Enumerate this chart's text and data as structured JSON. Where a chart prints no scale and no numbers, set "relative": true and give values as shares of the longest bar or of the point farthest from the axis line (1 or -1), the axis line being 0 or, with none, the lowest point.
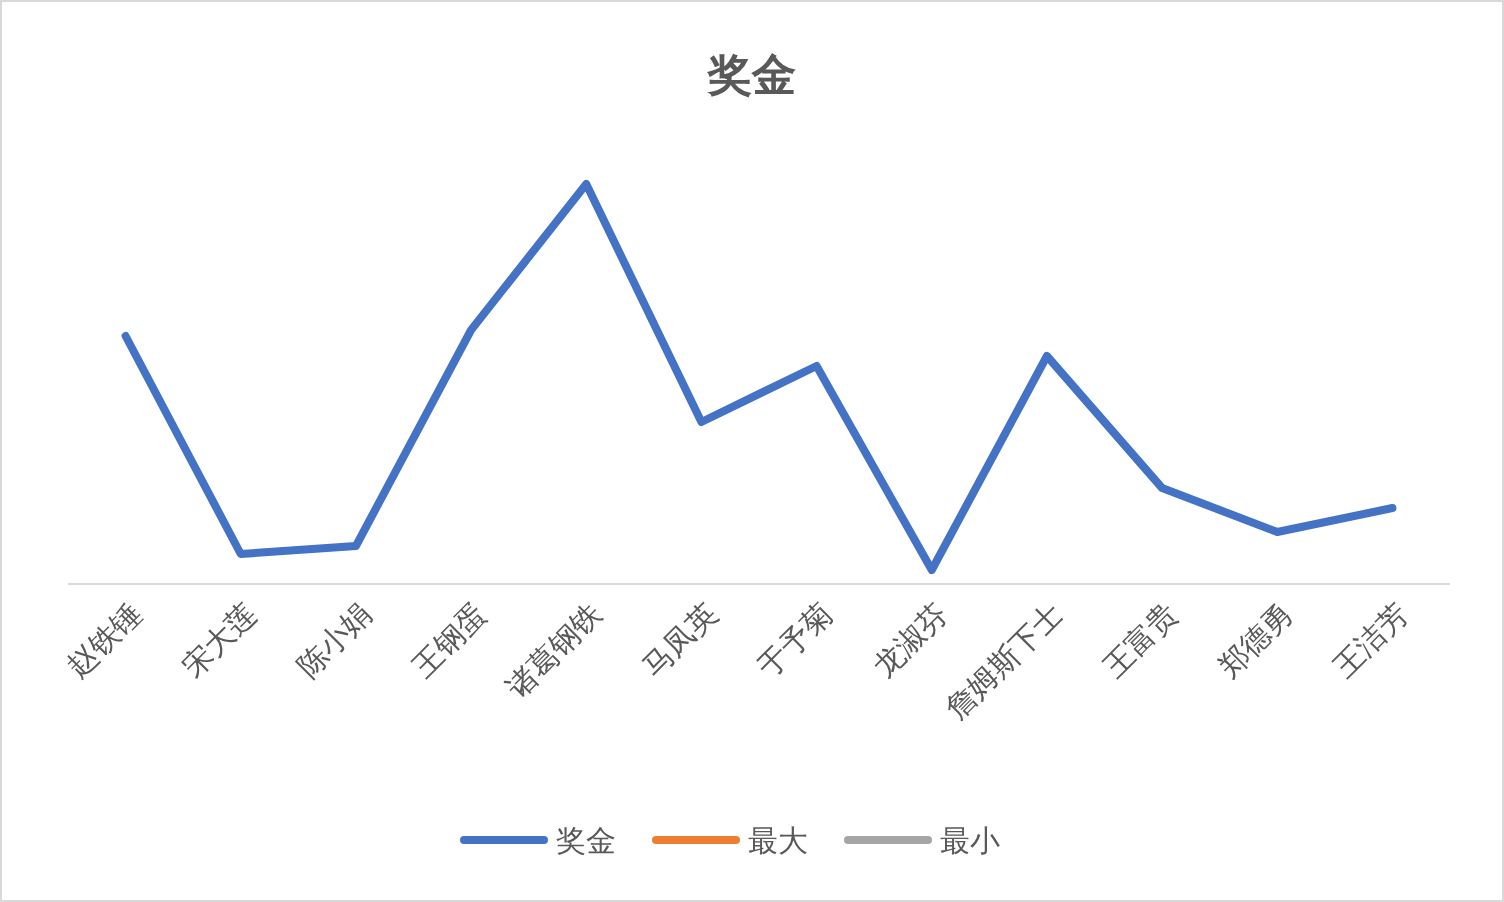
{
  "chart_data": {
    "type": "line",
    "title": "奖金",
    "relative": true,
    "legend": "bottom",
    "marker": "none",
    "line_style": "solid",
    "categories": [
      "赵铁锤",
      "宋大莲",
      "陈小娟",
      "王钢蛋",
      "诸葛钢铁",
      "马凤英",
      "于予菊",
      "龙淑芬",
      "詹姆斯下士",
      "王富贵",
      "郑德勇",
      "王洁芳"
    ],
    "series": [
      {
        "name": "奖金",
        "color": "#4472c4",
        "values": [
          0.62,
          0.075,
          0.095,
          0.635,
          1,
          0.405,
          0.545,
          0.035,
          0.57,
          0.24,
          0.13,
          0.19
        ]
      },
      {
        "name": "最大",
        "color": "#ed7d31",
        "values": [
          null,
          null,
          null,
          null,
          null,
          null,
          null,
          null,
          null,
          null,
          null,
          null
        ]
      },
      {
        "name": "最小",
        "color": "#a5a5a5",
        "values": [
          null,
          null,
          null,
          null,
          null,
          null,
          null,
          null,
          null,
          null,
          null,
          null
        ]
      }
    ]
  }
}
